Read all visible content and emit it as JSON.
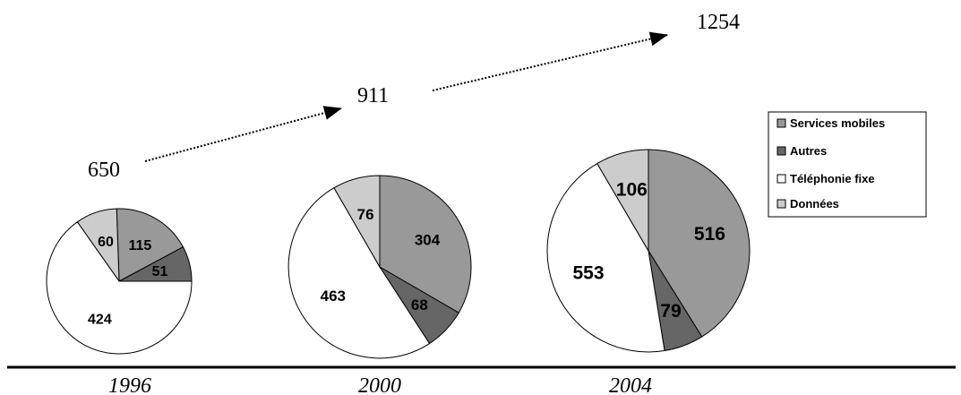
{
  "chart_data": {
    "type": "pie",
    "title": "",
    "legend": {
      "placement": "right",
      "entries": [
        {
          "key": "services_mobiles",
          "label": "Services mobiles",
          "color": "#999999"
        },
        {
          "key": "autres",
          "label": "Autres",
          "color": "#666666"
        },
        {
          "key": "telephonie_fixe",
          "label": "Téléphonie fixe",
          "color": "#ffffff"
        },
        {
          "key": "donnees",
          "label": "Données",
          "color": "#cccccc"
        }
      ]
    },
    "pies": [
      {
        "year": "1996",
        "total": "650",
        "slices": [
          {
            "key": "services_mobiles",
            "value": 115
          },
          {
            "key": "autres",
            "value": 51
          },
          {
            "key": "telephonie_fixe",
            "value": 424
          },
          {
            "key": "donnees",
            "value": 60
          }
        ]
      },
      {
        "year": "2000",
        "total": "911",
        "slices": [
          {
            "key": "services_mobiles",
            "value": 304
          },
          {
            "key": "autres",
            "value": 68
          },
          {
            "key": "telephonie_fixe",
            "value": 463
          },
          {
            "key": "donnees",
            "value": 76
          }
        ]
      },
      {
        "year": "2004",
        "total": "1254",
        "slices": [
          {
            "key": "services_mobiles",
            "value": 516
          },
          {
            "key": "autres",
            "value": 79
          },
          {
            "key": "telephonie_fixe",
            "value": 553
          },
          {
            "key": "donnees",
            "value": 106
          }
        ]
      }
    ]
  }
}
